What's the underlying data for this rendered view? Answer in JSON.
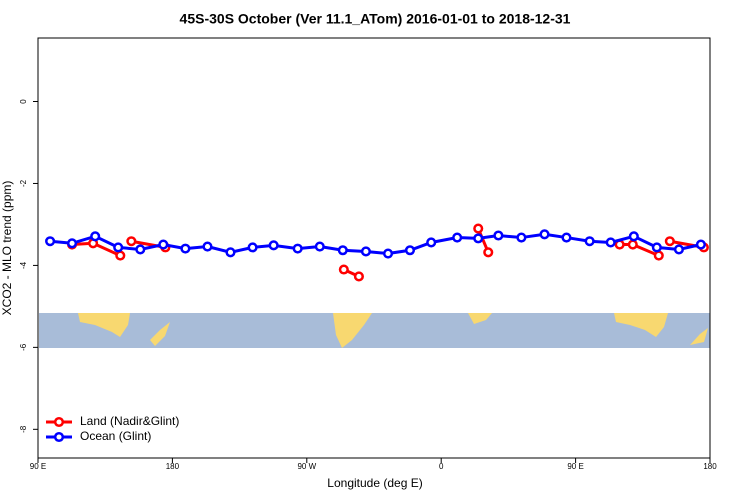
{
  "chart_data": {
    "type": "line",
    "title": "45S-30S October (Ver 11.1_ATom)   2016-01-01 to 2018-12-31",
    "x_label": "Longitude (deg E)",
    "y_label": "XCO2 - MLO trend (ppm)",
    "xlim": [
      90,
      540
    ],
    "xticks": [
      {
        "value": 90,
        "label": "90 E"
      },
      {
        "value": 180,
        "label": "180"
      },
      {
        "value": 270,
        "label": "90 W"
      },
      {
        "value": 360,
        "label": "0"
      },
      {
        "value": 450,
        "label": "90 E"
      },
      {
        "value": 540,
        "label": "180"
      }
    ],
    "ylim": [
      -8.7,
      1.55
    ],
    "yticks": [
      0,
      -2,
      -4,
      -6,
      -8
    ],
    "legend": "bottom-left",
    "series": [
      {
        "name": "Land (Nadir&Glint)",
        "color": "#ff0000",
        "x": [
          112.8,
          126.9,
          145.1,
          null,
          152.5,
          175.3,
          null,
          294.8,
          304.9,
          null,
          384.8,
          391.5,
          null,
          479.5,
          488.3,
          505.7,
          null,
          513.1,
          535.9
        ],
        "values": [
          -3.49,
          -3.46,
          -3.76,
          null,
          -3.41,
          -3.56,
          null,
          -4.1,
          -4.27,
          null,
          -3.1,
          -3.68,
          null,
          -3.49,
          -3.49,
          -3.76,
          null,
          -3.41,
          -3.56
        ]
      },
      {
        "name": "Ocean (Glint)",
        "color": "#0000ff",
        "x": [
          98.1,
          112.8,
          128.3,
          143.7,
          158.5,
          173.9,
          188.7,
          203.5,
          218.9,
          233.7,
          247.8,
          263.9,
          278.7,
          294.1,
          309.6,
          324.4,
          339.1,
          353.3,
          370.7,
          384.8,
          398.3,
          413.7,
          429.2,
          443.9,
          459.4,
          473.5,
          489.0,
          504.4,
          519.2,
          533.9
        ],
        "values": [
          -3.41,
          -3.46,
          -3.29,
          -3.56,
          -3.61,
          -3.49,
          -3.59,
          -3.54,
          -3.68,
          -3.56,
          -3.51,
          -3.59,
          -3.54,
          -3.63,
          -3.66,
          -3.71,
          -3.63,
          -3.44,
          -3.32,
          -3.34,
          -3.27,
          -3.32,
          -3.24,
          -3.32,
          -3.41,
          -3.44,
          -3.29,
          -3.56,
          -3.61,
          -3.49
        ]
      }
    ]
  }
}
